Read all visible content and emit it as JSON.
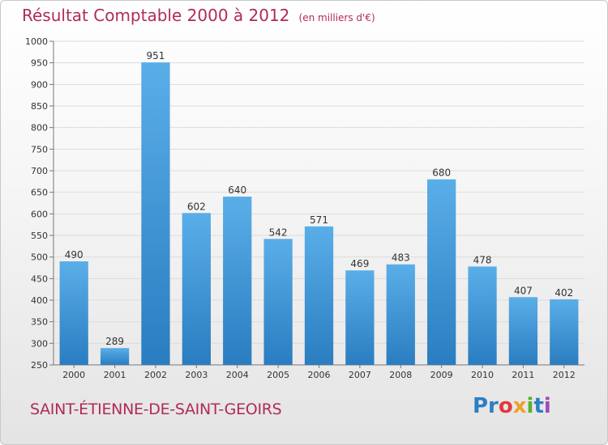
{
  "header": {
    "title": "Résultat Comptable 2000 à 2012",
    "subtitle": "(en milliers d'€)"
  },
  "footer": {
    "commune": "SAINT-ÉTIENNE-DE-SAINT-GEOIRS",
    "logo": [
      "Pr",
      "o",
      "x",
      "i",
      "t",
      "i"
    ]
  },
  "colors": {
    "bar_light": "#5aaee8",
    "bar_dark": "#2a7dc0",
    "title": "#b02b58"
  },
  "chart_data": {
    "type": "bar",
    "title": "Résultat Comptable 2000 à 2012",
    "subtitle": "(en milliers d'€)",
    "categories": [
      "2000",
      "2001",
      "2002",
      "2003",
      "2004",
      "2005",
      "2006",
      "2007",
      "2008",
      "2009",
      "2010",
      "2011",
      "2012"
    ],
    "values": [
      490,
      289,
      951,
      602,
      640,
      542,
      571,
      469,
      483,
      680,
      478,
      407,
      402
    ],
    "ylim": [
      250,
      1000
    ],
    "yticks": [
      250,
      300,
      350,
      400,
      450,
      500,
      550,
      600,
      650,
      700,
      750,
      800,
      850,
      900,
      950,
      1000
    ],
    "grid": true
  }
}
